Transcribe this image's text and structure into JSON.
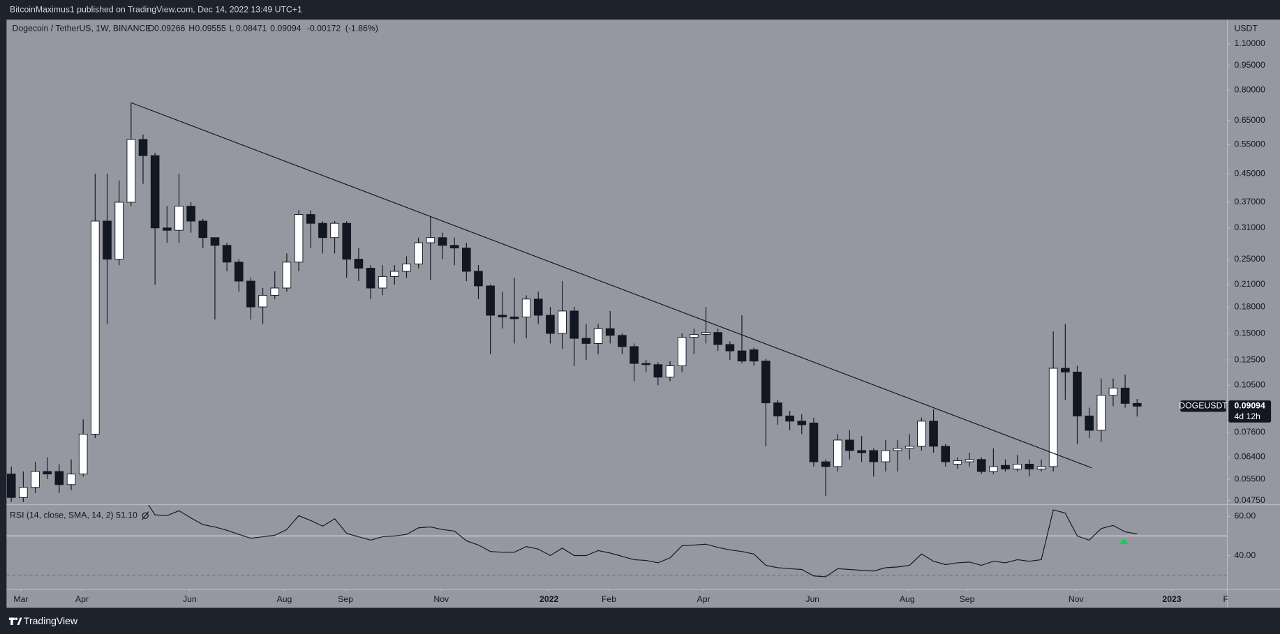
{
  "header": {
    "published": "BitcoinMaximus1 published on TradingView.com, Dec 14, 2022 13:49 UTC+1"
  },
  "footer": {
    "brand": "TradingView"
  },
  "chart_data": [
    {
      "type": "candlestick",
      "title": "Dogecoin / TetherUS, 1W, BINANCE",
      "legend_letters": [
        "O",
        "H",
        "L"
      ],
      "change_label": "-0.00172",
      "change_pct_label": "(-1.86%)",
      "currency": "USDT",
      "symbol": "DOGEUSDT",
      "countdown": "4d 12h",
      "up_color": "#ffffff",
      "down_color": "#131722",
      "log_scale": true,
      "open": [
        0.057,
        0.0485,
        0.052,
        0.058,
        0.058,
        0.053,
        0.057,
        0.075,
        0.325,
        0.25,
        0.37,
        0.57,
        0.51,
        0.31,
        0.305,
        0.36,
        0.325,
        0.29,
        0.275,
        0.245,
        0.215,
        0.18,
        0.195,
        0.205,
        0.245,
        0.34,
        0.32,
        0.29,
        0.32,
        0.25,
        0.235,
        0.205,
        0.222,
        0.23,
        0.242,
        0.28,
        0.29,
        0.275,
        0.27,
        0.23,
        0.208,
        0.17,
        0.168,
        0.168,
        0.19,
        0.17,
        0.15,
        0.175,
        0.145,
        0.14,
        0.155,
        0.148,
        0.137,
        0.122,
        0.121,
        0.111,
        0.12,
        0.146,
        0.149,
        0.151,
        0.139,
        0.133,
        0.134,
        0.124,
        0.093,
        0.085,
        0.082,
        0.081,
        0.062,
        0.06,
        0.072,
        0.067,
        0.067,
        0.062,
        0.067,
        0.068,
        0.069,
        0.082,
        0.069,
        0.061,
        0.062,
        0.063,
        0.058,
        0.0605,
        0.059,
        0.061,
        0.059,
        0.06,
        0.118,
        0.115,
        0.085,
        0.077,
        0.098,
        0.103,
        0.09266
      ],
      "high": [
        0.06,
        0.058,
        0.062,
        0.064,
        0.061,
        0.063,
        0.083,
        0.45,
        0.45,
        0.43,
        0.734,
        0.59,
        0.52,
        0.36,
        0.45,
        0.37,
        0.33,
        0.29,
        0.28,
        0.25,
        0.22,
        0.205,
        0.23,
        0.26,
        0.35,
        0.35,
        0.325,
        0.325,
        0.325,
        0.27,
        0.24,
        0.24,
        0.24,
        0.255,
        0.29,
        0.336,
        0.3,
        0.29,
        0.28,
        0.24,
        0.21,
        0.2,
        0.22,
        0.195,
        0.2,
        0.18,
        0.215,
        0.18,
        0.16,
        0.16,
        0.175,
        0.15,
        0.14,
        0.125,
        0.123,
        0.124,
        0.15,
        0.155,
        0.18,
        0.155,
        0.142,
        0.17,
        0.136,
        0.126,
        0.095,
        0.088,
        0.086,
        0.084,
        0.063,
        0.075,
        0.077,
        0.074,
        0.068,
        0.072,
        0.072,
        0.075,
        0.084,
        0.089,
        0.07,
        0.064,
        0.066,
        0.064,
        0.068,
        0.063,
        0.065,
        0.063,
        0.063,
        0.152,
        0.16,
        0.12,
        0.09,
        0.11,
        0.11,
        0.113,
        0.09555
      ],
      "low": [
        0.047,
        0.047,
        0.05,
        0.055,
        0.05,
        0.051,
        0.056,
        0.073,
        0.16,
        0.24,
        0.36,
        0.42,
        0.21,
        0.28,
        0.28,
        0.3,
        0.27,
        0.165,
        0.23,
        0.2,
        0.165,
        0.16,
        0.19,
        0.2,
        0.23,
        0.27,
        0.26,
        0.26,
        0.22,
        0.215,
        0.19,
        0.195,
        0.21,
        0.22,
        0.235,
        0.217,
        0.25,
        0.24,
        0.215,
        0.19,
        0.13,
        0.155,
        0.14,
        0.145,
        0.16,
        0.14,
        0.135,
        0.12,
        0.125,
        0.13,
        0.14,
        0.13,
        0.108,
        0.115,
        0.105,
        0.108,
        0.115,
        0.13,
        0.14,
        0.133,
        0.125,
        0.122,
        0.12,
        0.069,
        0.08,
        0.077,
        0.075,
        0.06,
        0.049,
        0.058,
        0.063,
        0.062,
        0.056,
        0.058,
        0.058,
        0.063,
        0.067,
        0.066,
        0.06,
        0.059,
        0.06,
        0.057,
        0.057,
        0.058,
        0.058,
        0.056,
        0.058,
        0.058,
        0.095,
        0.07,
        0.073,
        0.071,
        0.091,
        0.09,
        0.08471
      ],
      "close": [
        0.0485,
        0.052,
        0.058,
        0.057,
        0.053,
        0.057,
        0.075,
        0.325,
        0.25,
        0.37,
        0.57,
        0.51,
        0.31,
        0.305,
        0.36,
        0.325,
        0.29,
        0.275,
        0.245,
        0.215,
        0.18,
        0.195,
        0.205,
        0.245,
        0.34,
        0.32,
        0.29,
        0.32,
        0.25,
        0.235,
        0.205,
        0.222,
        0.23,
        0.242,
        0.28,
        0.29,
        0.275,
        0.27,
        0.23,
        0.208,
        0.17,
        0.168,
        0.166,
        0.19,
        0.17,
        0.15,
        0.175,
        0.145,
        0.14,
        0.155,
        0.148,
        0.137,
        0.122,
        0.121,
        0.111,
        0.12,
        0.146,
        0.149,
        0.151,
        0.139,
        0.133,
        0.124,
        0.124,
        0.093,
        0.085,
        0.082,
        0.08,
        0.062,
        0.06,
        0.072,
        0.067,
        0.066,
        0.062,
        0.067,
        0.068,
        0.069,
        0.082,
        0.069,
        0.062,
        0.0625,
        0.063,
        0.058,
        0.06,
        0.059,
        0.061,
        0.059,
        0.06,
        0.118,
        0.115,
        0.085,
        0.077,
        0.098,
        0.103,
        0.09266,
        0.09094
      ],
      "trendline": {
        "x": [
          10,
          90.2
        ],
        "y": [
          0.734,
          0.0595
        ]
      },
      "xlim": [
        -0.4,
        101.5
      ],
      "xticks": [
        {
          "value": 0.8,
          "label": "Mar"
        },
        {
          "value": 5.9,
          "label": "Apr"
        },
        {
          "value": 14.9,
          "label": "Jun"
        },
        {
          "value": 22.8,
          "label": "Aug"
        },
        {
          "value": 27.9,
          "label": "Sep"
        },
        {
          "value": 35.9,
          "label": "Nov"
        },
        {
          "value": 44.9,
          "label": "2022"
        },
        {
          "value": 49.9,
          "label": "Feb"
        },
        {
          "value": 57.8,
          "label": "Apr"
        },
        {
          "value": 66.9,
          "label": "Jun"
        },
        {
          "value": 74.8,
          "label": "Aug"
        },
        {
          "value": 79.8,
          "label": "Sep"
        },
        {
          "value": 88.9,
          "label": "Nov"
        },
        {
          "value": 96.9,
          "label": "2023"
        },
        {
          "value": 101.4,
          "label": "F"
        }
      ],
      "ylim": [
        0.0463,
        1.3
      ],
      "yticks": [
        {
          "value": 1.1,
          "label": "1.10000"
        },
        {
          "value": 0.95,
          "label": "0.95000"
        },
        {
          "value": 0.8,
          "label": "0.80000"
        },
        {
          "value": 0.65,
          "label": "0.65000"
        },
        {
          "value": 0.55,
          "label": "0.55000"
        },
        {
          "value": 0.45,
          "label": "0.45000"
        },
        {
          "value": 0.37,
          "label": "0.37000"
        },
        {
          "value": 0.31,
          "label": "0.31000"
        },
        {
          "value": 0.25,
          "label": "0.25000"
        },
        {
          "value": 0.21,
          "label": "0.21000"
        },
        {
          "value": 0.18,
          "label": "0.18000"
        },
        {
          "value": 0.15,
          "label": "0.15000"
        },
        {
          "value": 0.125,
          "label": "0.12500"
        },
        {
          "value": 0.105,
          "label": "0.10500"
        },
        {
          "value": 0.076,
          "label": "0.07600"
        },
        {
          "value": 0.064,
          "label": "0.06400"
        },
        {
          "value": 0.055,
          "label": "0.05500"
        },
        {
          "value": 0.0475,
          "label": "0.04750"
        }
      ]
    },
    {
      "type": "line",
      "title": "RSI (14, close, SMA, 14, 2)",
      "current_label": "51.10",
      "color": "#131722",
      "values": [
        null,
        null,
        null,
        null,
        null,
        null,
        null,
        null,
        null,
        null,
        null,
        70.0,
        60.8,
        60.4,
        62.9,
        59.2,
        55.8,
        54.6,
        52.9,
        50.8,
        48.8,
        49.6,
        50.4,
        53.3,
        60.4,
        57.9,
        55.0,
        58.8,
        51.3,
        49.6,
        47.9,
        49.6,
        50.0,
        50.8,
        54.2,
        54.6,
        53.3,
        52.5,
        47.5,
        45.4,
        42.1,
        41.7,
        41.7,
        44.6,
        43.3,
        40.0,
        43.8,
        40.0,
        40.0,
        42.5,
        41.3,
        39.6,
        37.9,
        37.5,
        36.3,
        38.8,
        45.0,
        45.4,
        45.8,
        44.2,
        42.9,
        42.1,
        40.8,
        35.0,
        33.8,
        33.3,
        32.9,
        29.6,
        29.2,
        33.3,
        32.9,
        32.5,
        32.1,
        33.8,
        34.2,
        35.0,
        40.8,
        37.1,
        35.4,
        36.3,
        36.7,
        35.0,
        37.1,
        36.3,
        37.9,
        37.1,
        37.9,
        63.3,
        61.7,
        50.0,
        47.9,
        53.8,
        55.4,
        52.1,
        51.1
      ],
      "levels": [
        50,
        30
      ],
      "ylim": [
        22.9,
        65.8
      ],
      "yticks": [
        {
          "value": 60,
          "label": "60.00"
        },
        {
          "value": 40,
          "label": "40.00"
        }
      ]
    }
  ]
}
